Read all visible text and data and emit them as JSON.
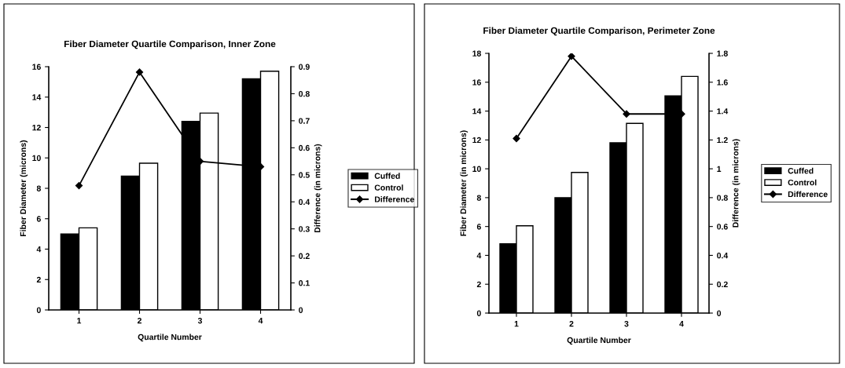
{
  "chart_data": [
    {
      "type": "bar",
      "title": "Fiber Diameter Quartile Comparison, Inner Zone",
      "xlabel": "Quartile Number",
      "ylabel": "Fiber Diameter (microns)",
      "y2label": "Difference (in microns)",
      "categories": [
        "1",
        "2",
        "3",
        "4"
      ],
      "series": [
        {
          "name": "Cuffed",
          "color": "#000000",
          "values": [
            5.0,
            8.8,
            12.4,
            15.2
          ]
        },
        {
          "name": "Control",
          "color": "#ffffff",
          "values": [
            5.4,
            9.65,
            12.95,
            15.7
          ]
        },
        {
          "name": "Difference",
          "type": "line",
          "axis": "y2",
          "color": "#000000",
          "marker": "diamond",
          "values": [
            0.46,
            0.88,
            0.55,
            0.53
          ]
        }
      ],
      "ylim": [
        0,
        16
      ],
      "yticks": [
        0,
        2,
        4,
        6,
        8,
        10,
        12,
        14,
        16
      ],
      "y2lim": [
        0,
        0.9
      ],
      "y2ticks": [
        0,
        0.1,
        0.2,
        0.3,
        0.4,
        0.5,
        0.6,
        0.7,
        0.8,
        0.9
      ],
      "grid": false,
      "legend": "right"
    },
    {
      "type": "bar",
      "title": "Fiber Diameter Quartile Comparison, Perimeter Zone",
      "xlabel": "Quartile Number",
      "ylabel": "Fiber Diameter (in microns)",
      "y2label": "Difference (in microns)",
      "categories": [
        "1",
        "2",
        "3",
        "4"
      ],
      "series": [
        {
          "name": "Cuffed",
          "color": "#000000",
          "values": [
            4.8,
            8.0,
            11.8,
            15.05
          ]
        },
        {
          "name": "Control",
          "color": "#ffffff",
          "values": [
            6.05,
            9.75,
            13.15,
            16.4
          ]
        },
        {
          "name": "Difference",
          "type": "line",
          "axis": "y2",
          "color": "#000000",
          "marker": "diamond",
          "values": [
            1.21,
            1.78,
            1.38,
            1.38
          ]
        }
      ],
      "ylim": [
        0,
        18
      ],
      "yticks": [
        0,
        2,
        4,
        6,
        8,
        10,
        12,
        14,
        16,
        18
      ],
      "y2lim": [
        0,
        1.8
      ],
      "y2ticks": [
        0,
        0.2,
        0.4,
        0.6,
        0.8,
        1,
        1.2,
        1.4,
        1.6,
        1.8
      ],
      "grid": false,
      "legend": "right"
    }
  ]
}
